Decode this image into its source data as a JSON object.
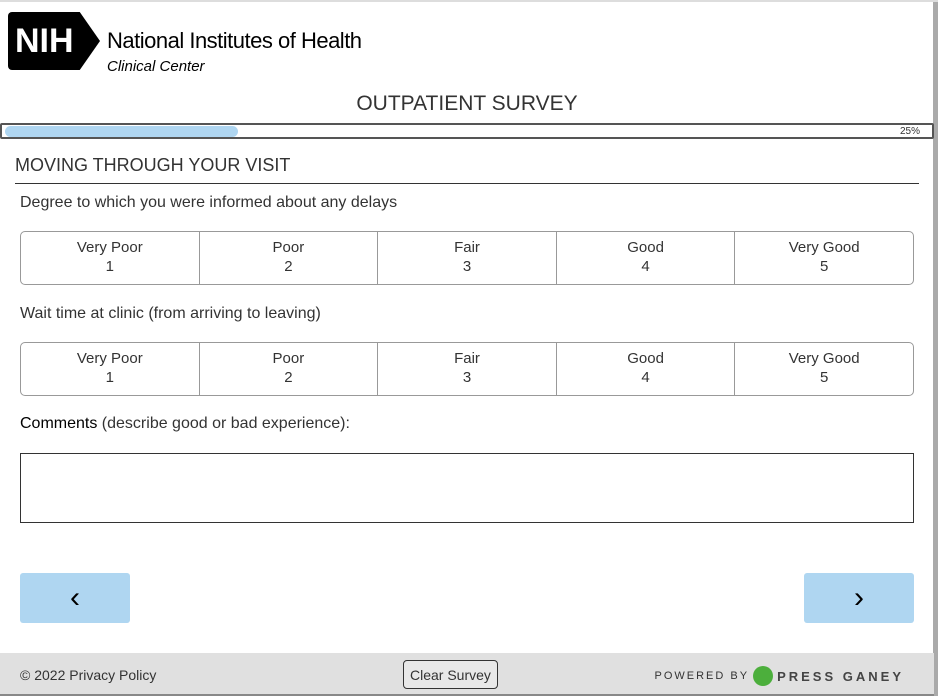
{
  "logo": {
    "mark": "NIH",
    "org": "National Institutes of Health",
    "sub": "Clinical Center"
  },
  "survey_title": "OUTPATIENT SURVEY",
  "progress": {
    "percent": 25,
    "label": "25%"
  },
  "section": "MOVING THROUGH YOUR VISIT",
  "questions": [
    {
      "text": "Degree to which you were informed about any delays",
      "options": [
        {
          "label": "Very Poor",
          "value": "1"
        },
        {
          "label": "Poor",
          "value": "2"
        },
        {
          "label": "Fair",
          "value": "3"
        },
        {
          "label": "Good",
          "value": "4"
        },
        {
          "label": "Very Good",
          "value": "5"
        }
      ]
    },
    {
      "text": "Wait time at clinic (from arriving to leaving)",
      "options": [
        {
          "label": "Very Poor",
          "value": "1"
        },
        {
          "label": "Poor",
          "value": "2"
        },
        {
          "label": "Fair",
          "value": "3"
        },
        {
          "label": "Good",
          "value": "4"
        },
        {
          "label": "Very Good",
          "value": "5"
        }
      ]
    }
  ],
  "comments": {
    "label": "Comments",
    "hint": " (describe good or bad experience):",
    "value": ""
  },
  "nav": {
    "prev": "‹",
    "next": "›"
  },
  "footer": {
    "copyright": "© 2022 Privacy Policy",
    "clear": "Clear Survey",
    "powered": "POWERED BY",
    "brand": "PRESS GANEY"
  },
  "colors": {
    "accent": "#afd6f1",
    "footer_bg": "#e0e0e0",
    "pg_green": "#4caf3c"
  }
}
